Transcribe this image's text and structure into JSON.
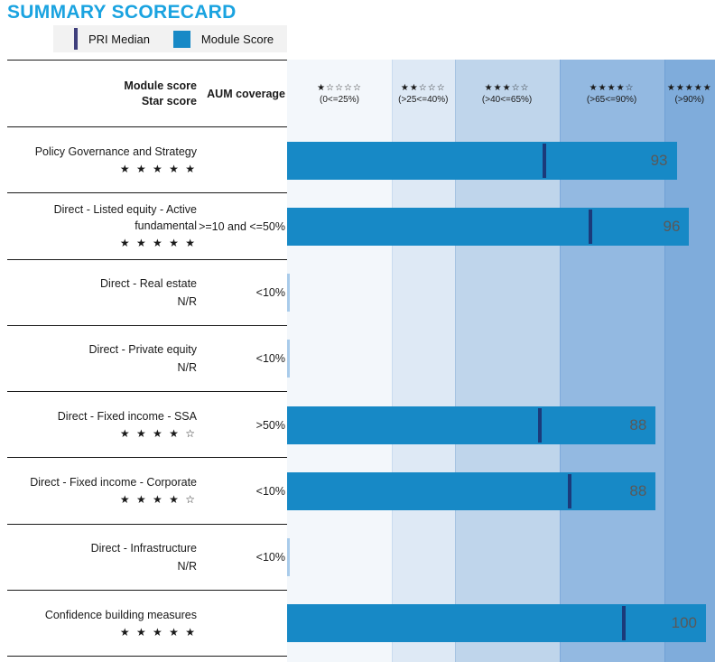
{
  "title": "SUMMARY SCORECARD",
  "legend": {
    "pri_median_label": "PRI Median",
    "module_score_label": "Module Score"
  },
  "header": {
    "module_score_line1": "Module score",
    "module_score_line2": "Star score",
    "aum_label": "AUM coverage"
  },
  "bands": [
    {
      "stars": 1,
      "range_label": "(0<=25%)",
      "from_pct": 0,
      "to_pct": 25,
      "color": "#F3F7FB",
      "border": "#E3EDF7"
    },
    {
      "stars": 2,
      "range_label": "(>25<=40%)",
      "from_pct": 25,
      "to_pct": 40,
      "color": "#DEE9F5",
      "border": "#C9DCEF"
    },
    {
      "stars": 3,
      "range_label": "(>40<=65%)",
      "from_pct": 40,
      "to_pct": 65,
      "color": "#BFD5EB",
      "border": "#A6C3E2"
    },
    {
      "stars": 4,
      "range_label": "(>65<=90%)",
      "from_pct": 65,
      "to_pct": 90,
      "color": "#93B9E1",
      "border": "#7FA9DA"
    },
    {
      "stars": 5,
      "range_label": "(>90%)",
      "from_pct": 90,
      "to_pct": 100,
      "color": "#7FACDB",
      "border": "#6FA0D4"
    }
  ],
  "rows": [
    {
      "label": "Policy Governance and Strategy",
      "stars": 5,
      "not_rated": null,
      "aum": "",
      "score": 93,
      "median": 61
    },
    {
      "label": "Direct - Listed equity - Active fundamental",
      "stars": 5,
      "not_rated": null,
      "aum": ">=10 and <=50%",
      "score": 96,
      "median": 72
    },
    {
      "label": "Direct - Real estate",
      "stars": null,
      "not_rated": "N/R",
      "aum": "<10%",
      "score": null,
      "median": null
    },
    {
      "label": "Direct - Private equity",
      "stars": null,
      "not_rated": "N/R",
      "aum": "<10%",
      "score": null,
      "median": null
    },
    {
      "label": "Direct - Fixed income - SSA",
      "stars": 4,
      "not_rated": null,
      "aum": ">50%",
      "score": 88,
      "median": 60
    },
    {
      "label": "Direct - Fixed income - Corporate",
      "stars": 4,
      "not_rated": null,
      "aum": "<10%",
      "score": 88,
      "median": 67
    },
    {
      "label": "Direct - Infrastructure",
      "stars": null,
      "not_rated": "N/R",
      "aum": "<10%",
      "score": null,
      "median": null
    },
    {
      "label": "Confidence building measures",
      "stars": 5,
      "not_rated": null,
      "aum": "",
      "score": 100,
      "median": 80
    }
  ],
  "colors": {
    "title": "#1AA3E0",
    "bar": "#1789C6",
    "median_line": "#1B3A7A",
    "legend_median_marker": "#3F3F7C",
    "value_text": "#595959",
    "nr_sliver": "#A9CBEA",
    "legend_bg": "#F2F2F2",
    "separator": "#1a1a1a"
  },
  "chart_data": {
    "type": "bar",
    "orientation": "horizontal",
    "title": "SUMMARY SCORECARD",
    "categories": [
      "Policy Governance and Strategy",
      "Direct - Listed equity - Active fundamental",
      "Direct - Real estate",
      "Direct - Private equity",
      "Direct - Fixed income - SSA",
      "Direct - Fixed income - Corporate",
      "Direct - Infrastructure",
      "Confidence building measures"
    ],
    "series": [
      {
        "name": "Module Score",
        "values": [
          93,
          96,
          null,
          null,
          88,
          88,
          null,
          100
        ]
      },
      {
        "name": "PRI Median (estimated from line positions)",
        "values": [
          61,
          72,
          null,
          null,
          60,
          67,
          null,
          80
        ]
      }
    ],
    "star_ratings": [
      5,
      5,
      null,
      null,
      4,
      4,
      null,
      5
    ],
    "not_rated_flags": [
      false,
      false,
      true,
      true,
      false,
      false,
      true,
      false
    ],
    "aum_coverage": [
      "",
      ">=10 and <=50%",
      "<10%",
      "<10%",
      ">50%",
      "<10%",
      "<10%",
      ""
    ],
    "xlim": [
      0,
      100
    ],
    "band_thresholds_pct": [
      0,
      25,
      40,
      65,
      90,
      100
    ],
    "band_star_labels": [
      "(0<=25%)",
      "(>25<=40%)",
      "(>40<=65%)",
      "(>65<=90%)",
      "(>90%)"
    ],
    "legend_position": "top",
    "grid": false
  }
}
